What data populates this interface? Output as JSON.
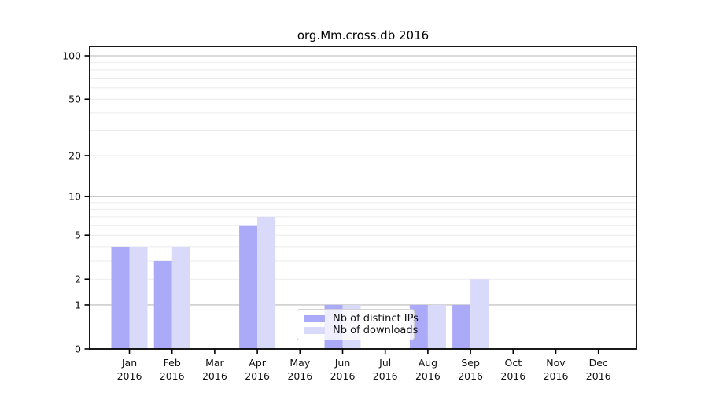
{
  "chart_data": {
    "type": "bar",
    "title": "org.Mm.cross.db 2016",
    "categories": [
      "Jan",
      "Feb",
      "Mar",
      "Apr",
      "May",
      "Jun",
      "Jul",
      "Aug",
      "Sep",
      "Oct",
      "Nov",
      "Dec"
    ],
    "category_year": "2016",
    "series": [
      {
        "name": "Nb of distinct IPs",
        "color": "#aaaaf8",
        "values": [
          4,
          3,
          0,
          6,
          0,
          1,
          0,
          1,
          1,
          0,
          0,
          0
        ]
      },
      {
        "name": "Nb of downloads",
        "color": "#d9d9fa",
        "values": [
          4,
          4,
          0,
          7,
          0,
          1,
          0,
          1,
          2,
          0,
          0,
          0
        ]
      }
    ],
    "yscale": "log1p",
    "ylim": [
      0,
      116
    ],
    "ytick_labels": [
      0,
      1,
      2,
      5,
      10,
      20,
      50,
      100
    ],
    "major_gridlines": [
      1,
      10,
      100
    ],
    "minor_gridlines": [
      2,
      3,
      4,
      5,
      6,
      7,
      8,
      9,
      20,
      30,
      40,
      50,
      60,
      70,
      80,
      90
    ],
    "grid": true,
    "legend_position": "lower center",
    "xlabel": "",
    "ylabel": ""
  },
  "colors": {
    "axis": "#000000",
    "tick_text": "#111111",
    "major_grid": "#b9b9b9",
    "minor_grid": "#ebebeb",
    "background": "#ffffff"
  }
}
